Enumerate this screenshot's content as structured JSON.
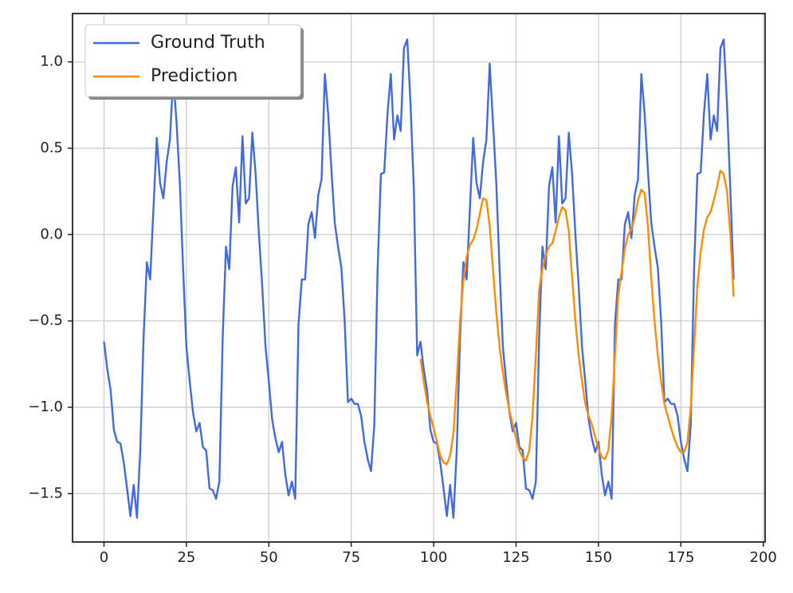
{
  "chart_data": {
    "type": "line",
    "x": [
      0,
      1,
      2,
      3,
      4,
      5,
      6,
      7,
      8,
      9,
      10,
      11,
      12,
      13,
      14,
      15,
      16,
      17,
      18,
      19,
      20,
      21,
      22,
      23,
      24,
      25,
      26,
      27,
      28,
      29,
      30,
      31,
      32,
      33,
      34,
      35,
      36,
      37,
      38,
      39,
      40,
      41,
      42,
      43,
      44,
      45,
      46,
      47,
      48,
      49,
      50,
      51,
      52,
      53,
      54,
      55,
      56,
      57,
      58,
      59,
      60,
      61,
      62,
      63,
      64,
      65,
      66,
      67,
      68,
      69,
      70,
      71,
      72,
      73,
      74,
      75,
      76,
      77,
      78,
      79,
      80,
      81,
      82,
      83,
      84,
      85,
      86,
      87,
      88,
      89,
      90,
      91,
      92,
      93,
      94,
      95,
      96,
      97,
      98,
      99,
      100,
      101,
      102,
      103,
      104,
      105,
      106,
      107,
      108,
      109,
      110,
      111,
      112,
      113,
      114,
      115,
      116,
      117,
      118,
      119,
      120,
      121,
      122,
      123,
      124,
      125,
      126,
      127,
      128,
      129,
      130,
      131,
      132,
      133,
      134,
      135,
      136,
      137,
      138,
      139,
      140,
      141,
      142,
      143,
      144,
      145,
      146,
      147,
      148,
      149,
      150,
      151,
      152,
      153,
      154,
      155,
      156,
      157,
      158,
      159,
      160,
      161,
      162,
      163,
      164,
      165,
      166,
      167,
      168,
      169,
      170,
      171,
      172,
      173,
      174,
      175,
      176,
      177,
      178,
      179,
      180,
      181,
      182,
      183,
      184,
      185,
      186,
      187,
      188,
      189,
      190,
      191
    ],
    "series": [
      {
        "name": "Ground Truth",
        "color": "#4169e1",
        "values": [
          -0.62,
          -0.78,
          -0.9,
          -1.13,
          -1.2,
          -1.21,
          -1.32,
          -1.47,
          -1.63,
          -1.45,
          -1.64,
          -1.25,
          -0.6,
          -0.16,
          -0.26,
          0.15,
          0.56,
          0.3,
          0.21,
          0.42,
          0.55,
          0.92,
          0.65,
          0.3,
          -0.2,
          -0.65,
          -0.85,
          -1.03,
          -1.14,
          -1.09,
          -1.23,
          -1.25,
          -1.47,
          -1.48,
          -1.53,
          -1.43,
          -0.6,
          -0.07,
          -0.2,
          0.28,
          0.39,
          0.07,
          0.57,
          0.18,
          0.21,
          0.59,
          0.35,
          0.0,
          -0.3,
          -0.65,
          -0.85,
          -1.07,
          -1.18,
          -1.26,
          -1.2,
          -1.39,
          -1.51,
          -1.43,
          -1.53,
          -0.52,
          -0.26,
          -0.26,
          0.06,
          0.13,
          -0.02,
          0.23,
          0.32,
          0.93,
          0.7,
          0.37,
          0.07,
          -0.07,
          -0.19,
          -0.5,
          -0.97,
          -0.95,
          -0.98,
          -0.98,
          -1.05,
          -1.2,
          -1.3,
          -1.37,
          -1.1,
          -0.2,
          0.35,
          0.36,
          0.7,
          0.93,
          0.55,
          0.69,
          0.6,
          1.08,
          1.13,
          0.75,
          0.26,
          -0.7,
          -0.62,
          -0.78,
          -0.9,
          -1.13,
          -1.2,
          -1.21,
          -1.32,
          -1.47,
          -1.63,
          -1.45,
          -1.64,
          -1.25,
          -0.6,
          -0.16,
          -0.26,
          0.15,
          0.56,
          0.3,
          0.21,
          0.42,
          0.55,
          0.99,
          0.65,
          0.3,
          -0.2,
          -0.65,
          -0.85,
          -1.03,
          -1.14,
          -1.09,
          -1.23,
          -1.25,
          -1.47,
          -1.48,
          -1.53,
          -1.43,
          -0.6,
          -0.07,
          -0.2,
          0.28,
          0.39,
          0.07,
          0.57,
          0.18,
          0.21,
          0.59,
          0.35,
          0.0,
          -0.3,
          -0.65,
          -0.85,
          -1.07,
          -1.18,
          -1.26,
          -1.2,
          -1.39,
          -1.51,
          -1.43,
          -1.53,
          -0.52,
          -0.26,
          -0.26,
          0.06,
          0.13,
          -0.02,
          0.23,
          0.32,
          0.93,
          0.7,
          0.37,
          0.07,
          -0.07,
          -0.19,
          -0.5,
          -0.97,
          -0.95,
          -0.98,
          -0.98,
          -1.05,
          -1.2,
          -1.3,
          -1.37,
          -1.1,
          -0.2,
          0.35,
          0.36,
          0.7,
          0.93,
          0.55,
          0.69,
          0.6,
          1.08,
          1.13,
          0.75,
          0.26,
          -0.26
        ]
      },
      {
        "name": "Prediction",
        "color": "#ff8c00",
        "values": [
          null,
          null,
          null,
          null,
          null,
          null,
          null,
          null,
          null,
          null,
          null,
          null,
          null,
          null,
          null,
          null,
          null,
          null,
          null,
          null,
          null,
          null,
          null,
          null,
          null,
          null,
          null,
          null,
          null,
          null,
          null,
          null,
          null,
          null,
          null,
          null,
          null,
          null,
          null,
          null,
          null,
          null,
          null,
          null,
          null,
          null,
          null,
          null,
          null,
          null,
          null,
          null,
          null,
          null,
          null,
          null,
          null,
          null,
          null,
          null,
          null,
          null,
          null,
          null,
          null,
          null,
          null,
          null,
          null,
          null,
          null,
          null,
          null,
          null,
          null,
          null,
          null,
          null,
          null,
          null,
          null,
          null,
          null,
          null,
          null,
          null,
          null,
          null,
          null,
          null,
          null,
          null,
          null,
          null,
          null,
          null,
          -0.72,
          -0.85,
          -0.97,
          -1.05,
          -1.12,
          -1.2,
          -1.28,
          -1.32,
          -1.33,
          -1.28,
          -1.15,
          -0.85,
          -0.5,
          -0.27,
          -0.13,
          -0.06,
          -0.03,
          0.03,
          0.12,
          0.21,
          0.2,
          0.05,
          -0.2,
          -0.45,
          -0.65,
          -0.8,
          -0.92,
          -1.02,
          -1.1,
          -1.18,
          -1.25,
          -1.29,
          -1.31,
          -1.25,
          -1.05,
          -0.7,
          -0.32,
          -0.2,
          -0.12,
          -0.07,
          -0.05,
          0.02,
          0.1,
          0.16,
          0.14,
          0.02,
          -0.25,
          -0.5,
          -0.7,
          -0.85,
          -0.98,
          -1.05,
          -1.1,
          -1.17,
          -1.24,
          -1.29,
          -1.3,
          -1.25,
          -1.05,
          -0.7,
          -0.35,
          -0.22,
          -0.08,
          0.0,
          0.03,
          0.1,
          0.2,
          0.26,
          0.24,
          0.05,
          -0.25,
          -0.5,
          -0.7,
          -0.85,
          -0.98,
          -1.05,
          -1.12,
          -1.18,
          -1.23,
          -1.26,
          -1.26,
          -1.2,
          -1.0,
          -0.65,
          -0.3,
          -0.1,
          0.03,
          0.1,
          0.13,
          0.2,
          0.28,
          0.37,
          0.35,
          0.25,
          0.0,
          -0.36
        ]
      }
    ],
    "xlim": [
      -9.55,
      200.55
    ],
    "ylim": [
      -1.78,
      1.28
    ],
    "xticks": [
      0,
      25,
      50,
      75,
      100,
      125,
      150,
      175,
      200
    ],
    "yticks": [
      {
        "value": -1.5,
        "label": "−1.5"
      },
      {
        "value": -1.0,
        "label": "−1.0"
      },
      {
        "value": -0.5,
        "label": "−0.5"
      },
      {
        "value": 0,
        "label": "0.0"
      },
      {
        "value": 0.5,
        "label": "0.5"
      },
      {
        "value": 1.0,
        "label": "1.0"
      }
    ],
    "grid": true,
    "legend": "upper-left"
  }
}
